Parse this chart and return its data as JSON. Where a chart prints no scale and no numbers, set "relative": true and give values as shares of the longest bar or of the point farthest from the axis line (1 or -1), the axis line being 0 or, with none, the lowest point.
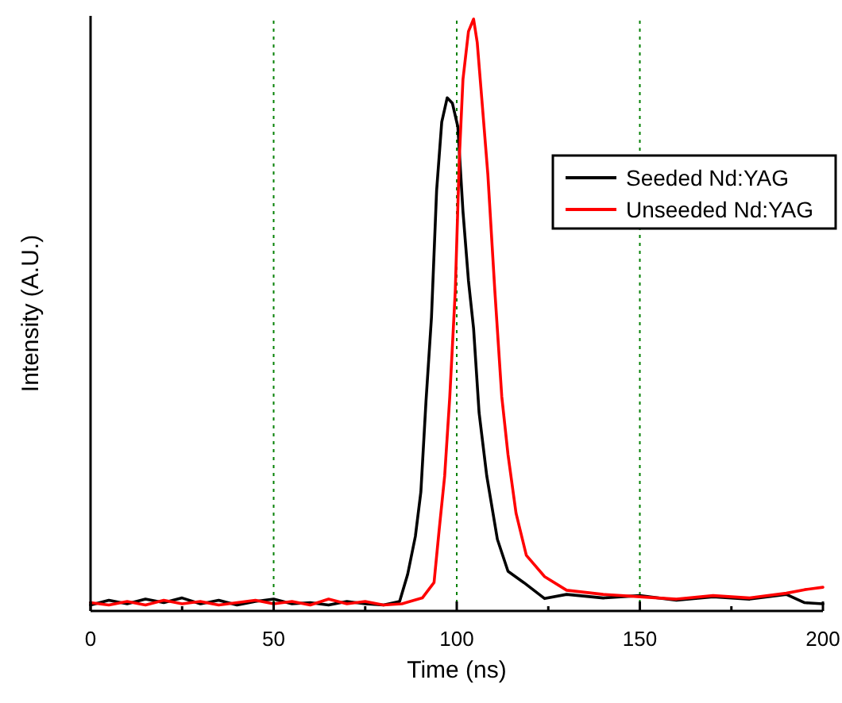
{
  "chart_data": {
    "type": "line",
    "relative": true,
    "xlabel": "Time (ns)",
    "ylabel": "Intensity (A.U.)",
    "xlim": [
      0,
      200
    ],
    "xticks": [
      0,
      {
        "value": 25,
        "label": null
      },
      50,
      {
        "value": 75,
        "label": null
      },
      100,
      {
        "value": 125,
        "label": null
      },
      150,
      {
        "value": 175,
        "label": null
      },
      200
    ],
    "grid": "x",
    "legend": "top right",
    "line_style": "solid",
    "series": [
      {
        "name": "Seeded Nd:YAG",
        "color": "#000000",
        "x": [
          0,
          5,
          10,
          15,
          20,
          25,
          30,
          35,
          40,
          45,
          50,
          55,
          60,
          65,
          70,
          75,
          80,
          84.4,
          86.6,
          88.7,
          90.2,
          91.6,
          93.1,
          93.8,
          94.5,
          95.9,
          97.4,
          98.8,
          100.3,
          101.7,
          103.2,
          104.6,
          106.1,
          108.2,
          111.1,
          114,
          118.3,
          124,
          130,
          140,
          150,
          160,
          170,
          180,
          190,
          195,
          200
        ],
        "values": [
          0.01,
          0.018,
          0.012,
          0.02,
          0.014,
          0.022,
          0.012,
          0.018,
          0.01,
          0.016,
          0.02,
          0.012,
          0.014,
          0.01,
          0.016,
          0.012,
          0.01,
          0.016,
          0.062,
          0.126,
          0.201,
          0.354,
          0.496,
          0.603,
          0.71,
          0.826,
          0.867,
          0.858,
          0.818,
          0.675,
          0.558,
          0.477,
          0.335,
          0.228,
          0.121,
          0.067,
          0.048,
          0.021,
          0.028,
          0.022,
          0.026,
          0.018,
          0.024,
          0.02,
          0.028,
          0.014,
          0.012
        ]
      },
      {
        "name": "Unseeded Nd:YAG",
        "color": "#ff0000",
        "x": [
          0,
          5,
          10,
          15,
          20,
          25,
          30,
          35,
          40,
          45,
          50,
          55,
          60,
          65,
          70,
          75,
          80,
          85,
          90.6,
          93.8,
          95.2,
          96.7,
          98.1,
          99.6,
          100.7,
          101.7,
          103.2,
          104.6,
          105.6,
          107,
          108.5,
          110.4,
          112.3,
          114,
          116.2,
          119,
          124,
          130,
          140,
          150,
          160,
          170,
          180,
          190,
          195,
          200
        ],
        "values": [
          0.014,
          0.01,
          0.016,
          0.01,
          0.018,
          0.012,
          0.016,
          0.01,
          0.014,
          0.018,
          0.012,
          0.016,
          0.01,
          0.02,
          0.012,
          0.016,
          0.01,
          0.012,
          0.022,
          0.048,
          0.137,
          0.228,
          0.362,
          0.541,
          0.764,
          0.898,
          0.979,
          1.0,
          0.96,
          0.853,
          0.737,
          0.541,
          0.362,
          0.264,
          0.165,
          0.094,
          0.058,
          0.035,
          0.028,
          0.024,
          0.02,
          0.026,
          0.022,
          0.03,
          0.036,
          0.04
        ]
      }
    ]
  }
}
